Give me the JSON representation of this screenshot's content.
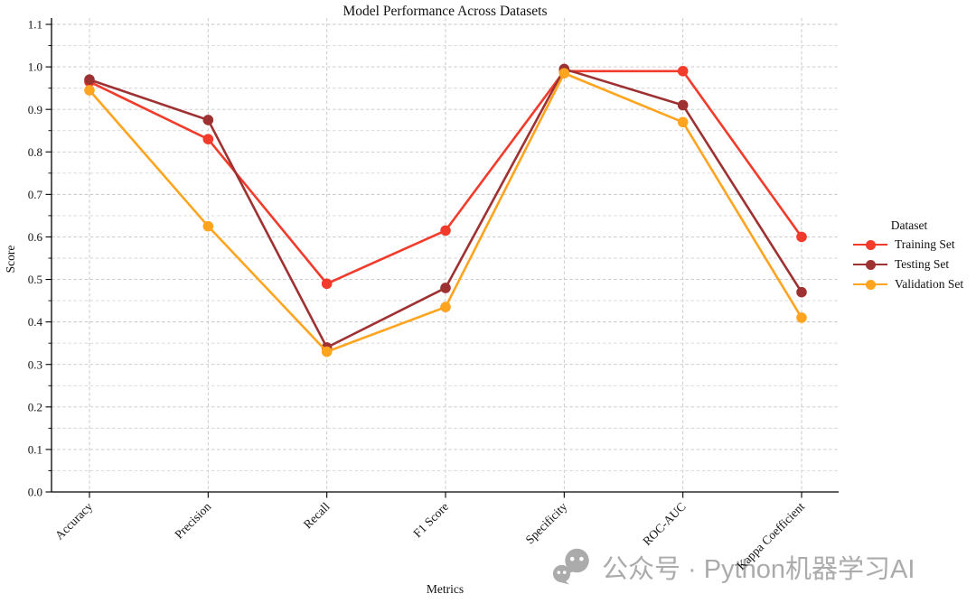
{
  "watermark": {
    "icon": "wechat-icon",
    "text": "公众号 · Python机器学习AI",
    "color": "#ABABAB"
  },
  "chart_data": {
    "type": "line",
    "title": "Model Performance Across Datasets",
    "xlabel": "Metrics",
    "ylabel": "Score",
    "legend_title": "Dataset",
    "legend_position": "right",
    "grid": true,
    "grid_style": "dashed",
    "ylim": [
      0.0,
      1.1
    ],
    "ytick_step": 0.1,
    "ytick_minor_step": 0.05,
    "ytick_labels": [
      "0.0",
      "0.1",
      "0.2",
      "0.3",
      "0.4",
      "0.5",
      "0.6",
      "0.7",
      "0.8",
      "0.9",
      "1.0",
      "1.1"
    ],
    "categories": [
      "Accuracy",
      "Precision",
      "Recall",
      "F1 Score",
      "Specificity",
      "ROC-AUC",
      "Kappa Coefficient"
    ],
    "series": [
      {
        "name": "Training Set",
        "color": "#F23B2B",
        "values": [
          0.965,
          0.83,
          0.49,
          0.615,
          0.99,
          0.99,
          0.6
        ]
      },
      {
        "name": "Testing Set",
        "color": "#9E3132",
        "values": [
          0.97,
          0.875,
          0.34,
          0.48,
          0.995,
          0.91,
          0.47
        ]
      },
      {
        "name": "Validation Set",
        "color": "#FFA41F",
        "values": [
          0.945,
          0.625,
          0.33,
          0.435,
          0.985,
          0.87,
          0.41
        ]
      }
    ],
    "colors": {
      "grid_major": "#c5c5c5",
      "grid_minor": "#d5d5d5",
      "axis": "#000000",
      "text": "#111111"
    }
  }
}
